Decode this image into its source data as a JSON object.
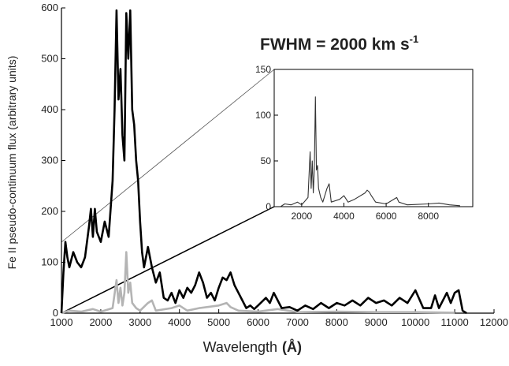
{
  "chart_data": [
    {
      "type": "line",
      "annotation": {
        "text": "FWHM = 2000 km s",
        "superscript": "-1"
      },
      "xlabel": "Wavelength",
      "xlabel_unit": "(Å)",
      "ylabel": "Fe II pseudo-continuum flux (arbitrary units)",
      "xlim": [
        1000,
        12000
      ],
      "ylim": [
        0,
        600
      ],
      "xticks": [
        1000,
        2000,
        3000,
        4000,
        5000,
        6000,
        7000,
        8000,
        9000,
        10000,
        11000,
        12000
      ],
      "yticks": [
        0,
        100,
        200,
        300,
        400,
        500,
        600
      ],
      "series": [
        {
          "color": "#000000",
          "x": [
            1000,
            1050,
            1100,
            1150,
            1200,
            1300,
            1400,
            1500,
            1600,
            1700,
            1750,
            1800,
            1850,
            1900,
            2000,
            2100,
            2200,
            2300,
            2350,
            2400,
            2450,
            2500,
            2550,
            2600,
            2650,
            2700,
            2750,
            2800,
            2850,
            2900,
            2950,
            3000,
            3050,
            3100,
            3200,
            3300,
            3400,
            3500,
            3600,
            3700,
            3800,
            3900,
            4000,
            4100,
            4200,
            4300,
            4400,
            4500,
            4600,
            4700,
            4800,
            4900,
            5000,
            5100,
            5200,
            5300,
            5400,
            5500,
            5600,
            5700,
            5800,
            5900,
            6000,
            6200,
            6300,
            6400,
            6500,
            6600,
            6800,
            7000,
            7200,
            7400,
            7600,
            7800,
            8000,
            8200,
            8400,
            8600,
            8800,
            9000,
            9200,
            9400,
            9600,
            9800,
            10000,
            10200,
            10400,
            10500,
            10600,
            10800,
            10900,
            11000,
            11100,
            11200,
            11300
          ],
          "values": [
            0,
            80,
            140,
            110,
            90,
            120,
            100,
            90,
            110,
            170,
            205,
            150,
            205,
            160,
            140,
            180,
            150,
            260,
            400,
            595,
            420,
            480,
            350,
            300,
            590,
            500,
            595,
            400,
            370,
            300,
            260,
            180,
            120,
            90,
            130,
            90,
            60,
            80,
            30,
            25,
            40,
            20,
            45,
            30,
            50,
            40,
            55,
            80,
            60,
            30,
            40,
            25,
            50,
            70,
            65,
            80,
            55,
            40,
            25,
            10,
            15,
            8,
            15,
            30,
            20,
            40,
            25,
            10,
            12,
            5,
            15,
            8,
            20,
            10,
            20,
            15,
            25,
            15,
            30,
            20,
            25,
            15,
            30,
            20,
            45,
            10,
            10,
            35,
            10,
            40,
            20,
            40,
            45,
            5,
            0
          ]
        },
        {
          "color": "#b4b4b4",
          "x": [
            1000,
            1200,
            1500,
            1800,
            2000,
            2300,
            2400,
            2450,
            2500,
            2550,
            2600,
            2650,
            2700,
            2750,
            2800,
            2900,
            3000,
            3200,
            3300,
            3400,
            3800,
            4000,
            4200,
            4500,
            5000,
            5200,
            5300,
            5500,
            6000,
            6500,
            7000,
            8000,
            9000,
            10000,
            11000
          ],
          "values": [
            0,
            5,
            3,
            8,
            3,
            10,
            65,
            20,
            50,
            15,
            40,
            120,
            40,
            60,
            20,
            10,
            5,
            20,
            25,
            5,
            10,
            15,
            5,
            10,
            15,
            20,
            12,
            5,
            3,
            8,
            2,
            3,
            2,
            2,
            1
          ]
        }
      ]
    },
    {
      "type": "line",
      "xlim": [
        700,
        10100
      ],
      "ylim": [
        0,
        150
      ],
      "xticks": [
        2000,
        4000,
        6000,
        8000
      ],
      "yticks": [
        0,
        50,
        100,
        150
      ],
      "series": [
        {
          "color": "#333333",
          "x": [
            1000,
            1200,
            1500,
            1800,
            2000,
            2300,
            2400,
            2450,
            2500,
            2550,
            2600,
            2650,
            2700,
            2750,
            2800,
            2900,
            3000,
            3200,
            3300,
            3400,
            3800,
            4000,
            4200,
            4500,
            5000,
            5100,
            5200,
            5300,
            5500,
            6000,
            6500,
            6600,
            7000,
            8000,
            8500,
            9000,
            9500
          ],
          "values": [
            0,
            3,
            2,
            5,
            2,
            10,
            60,
            20,
            50,
            15,
            40,
            120,
            40,
            45,
            20,
            10,
            5,
            20,
            25,
            5,
            8,
            12,
            5,
            8,
            15,
            18,
            16,
            12,
            5,
            3,
            10,
            5,
            2,
            3,
            4,
            2,
            1
          ]
        }
      ]
    }
  ]
}
